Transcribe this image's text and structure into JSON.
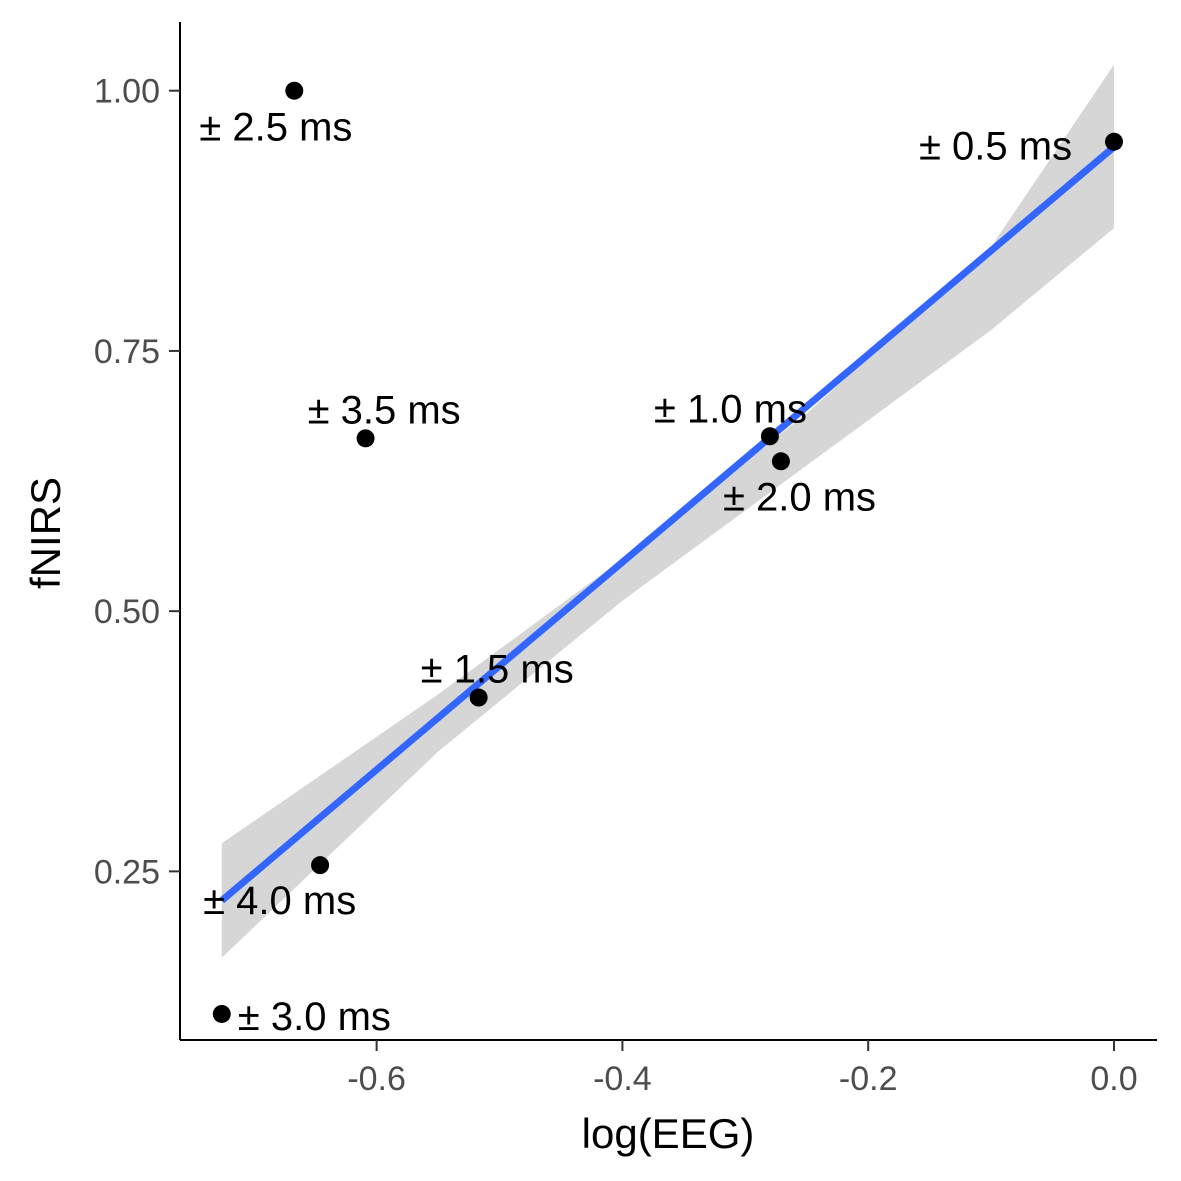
{
  "chart_data": {
    "type": "scatter",
    "xlabel": "log(EEG)",
    "ylabel": "fNIRS",
    "xlim": [
      -0.76,
      0.035
    ],
    "ylim": [
      0.088,
      1.066
    ],
    "x_ticks": [
      -0.6,
      -0.4,
      -0.2,
      0.0
    ],
    "x_tick_labels": [
      "-0.6",
      "-0.4",
      "-0.2",
      "0.0"
    ],
    "y_ticks": [
      0.25,
      0.5,
      0.75,
      1.0
    ],
    "y_tick_labels": [
      "0.25",
      "0.50",
      "0.75",
      "1.00"
    ],
    "points": [
      {
        "x": -0.667,
        "y": 1.0,
        "label": "± 2.5 ms"
      },
      {
        "x": 0.0,
        "y": 0.951,
        "label": "± 0.5 ms"
      },
      {
        "x": -0.609,
        "y": 0.666,
        "label": "± 3.5 ms"
      },
      {
        "x": -0.28,
        "y": 0.668,
        "label": "± 1.0 ms"
      },
      {
        "x": -0.271,
        "y": 0.644,
        "label": "± 2.0 ms"
      },
      {
        "x": -0.517,
        "y": 0.417,
        "label": "± 1.5 ms"
      },
      {
        "x": -0.646,
        "y": 0.256,
        "label": "± 4.0 ms"
      },
      {
        "x": -0.726,
        "y": 0.113,
        "label": "± 3.0 ms"
      }
    ],
    "fit": {
      "method": "linear regression with confidence band",
      "line": [
        [
          -0.726,
          0.222
        ],
        [
          0.0,
          0.946
        ]
      ],
      "band_upper": [
        [
          -0.726,
          0.277
        ],
        [
          -0.55,
          0.42
        ],
        [
          -0.4,
          0.55
        ],
        [
          -0.25,
          0.69
        ],
        [
          -0.1,
          0.85
        ],
        [
          0.0,
          1.025
        ]
      ],
      "band_lower": [
        [
          -0.726,
          0.167
        ],
        [
          -0.55,
          0.365
        ],
        [
          -0.4,
          0.51
        ],
        [
          -0.25,
          0.64
        ],
        [
          -0.1,
          0.77
        ],
        [
          0.0,
          0.868
        ]
      ],
      "line_color": "#3366ff",
      "band_color": "#d6d6d6"
    },
    "grid": false,
    "legend": "none"
  }
}
